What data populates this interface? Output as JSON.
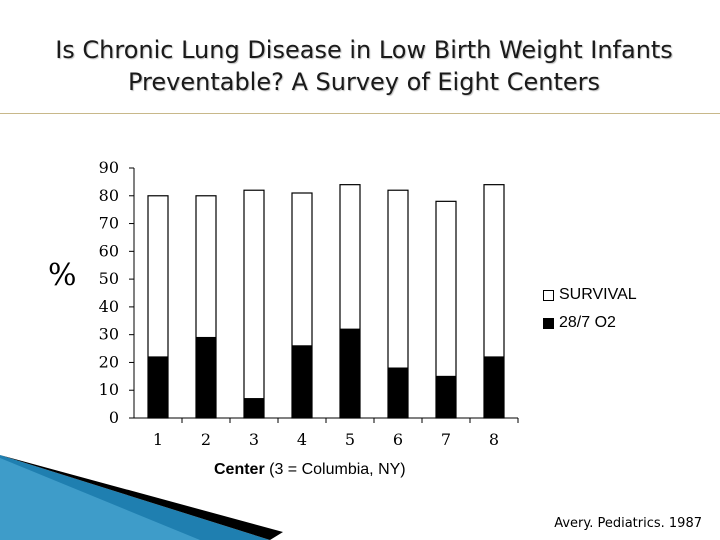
{
  "slide": {
    "title_line1": "Is Chronic Lung Disease in Low Birth Weight Infants",
    "title_line2": "Preventable? A Survey of Eight Centers",
    "citation": "Avery. Pediatrics. 1987"
  },
  "chart_data": {
    "type": "bar",
    "ylabel": "%",
    "xlabel_bold": "Center",
    "xlabel_rest": " (3 = Columbia, NY)",
    "categories": [
      "1",
      "2",
      "3",
      "4",
      "5",
      "6",
      "7",
      "8"
    ],
    "yticks": [
      "0",
      "10",
      "20",
      "30",
      "40",
      "50",
      "60",
      "70",
      "80",
      "90"
    ],
    "ylim": [
      0,
      90
    ],
    "grid": false,
    "legend_position": "right",
    "series": [
      {
        "name": "SURVIVAL",
        "values": [
          80,
          80,
          82,
          81,
          84,
          82,
          78,
          84
        ],
        "color": "#ffffff"
      },
      {
        "name": "28/7 O2",
        "values": [
          22,
          29,
          7,
          26,
          32,
          18,
          15,
          22
        ],
        "color": "#000000"
      }
    ]
  },
  "colors": {
    "rule": "#c8b88a",
    "accent_blue": "#1f7fb0",
    "dark": "#000000"
  }
}
